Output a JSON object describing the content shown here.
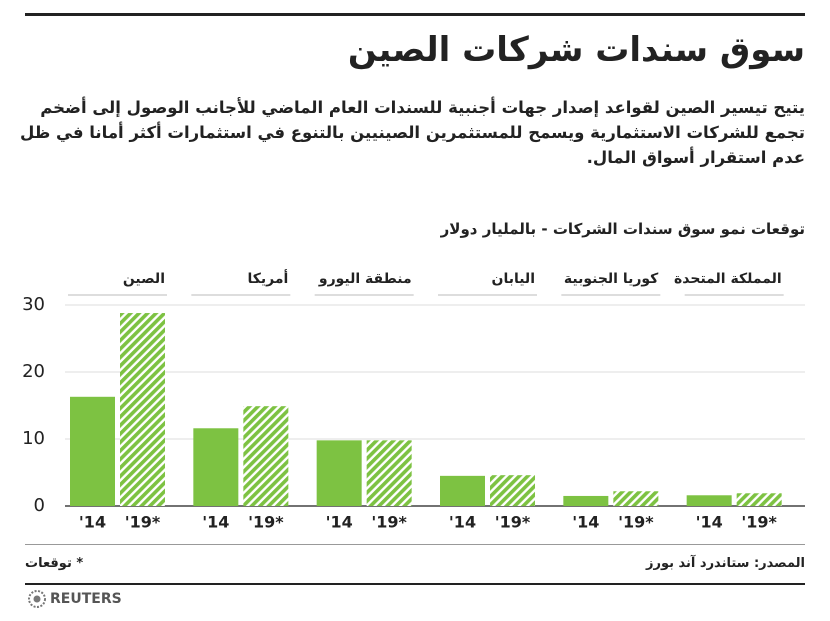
{
  "chart_data": {
    "type": "bar",
    "title": "سوق سندات شركات الصين",
    "subtitle": "يتيح تيسير الصين لقواعد إصدار جهات أجنبية للسندات العام الماضي للأجانب الوصول إلى أضخم تجمع للشركات الاستثمارية ويسمح للمستثمرين الصينيين بالتنوع في استثمارات أكثر أمانا في ظل عدم استقرار أسواق المال.",
    "chart_label": "توقعات نمو سوق سندات الشركات - بالمليار دولار",
    "categories": [
      "الصين",
      "أمريكا",
      "منطقة اليورو",
      "اليابان",
      "كوريا الجنوبية",
      "المملكة المتحدة"
    ],
    "series": [
      {
        "name": "'14",
        "color": "#7dc242",
        "hatch": false,
        "values": [
          16.3,
          11.6,
          9.8,
          4.5,
          1.5,
          1.6
        ]
      },
      {
        "name": "'19*",
        "color": "#7dc242",
        "hatch": true,
        "values": [
          28.8,
          14.9,
          9.8,
          4.6,
          2.2,
          1.9
        ]
      }
    ],
    "ylim": [
      0,
      30
    ],
    "yticks": [
      0,
      10,
      20,
      30
    ],
    "grid": true,
    "source": "المصدر: ستاندرد آند بورز",
    "footnote": "* توقعات",
    "brand": "REUTERS"
  }
}
